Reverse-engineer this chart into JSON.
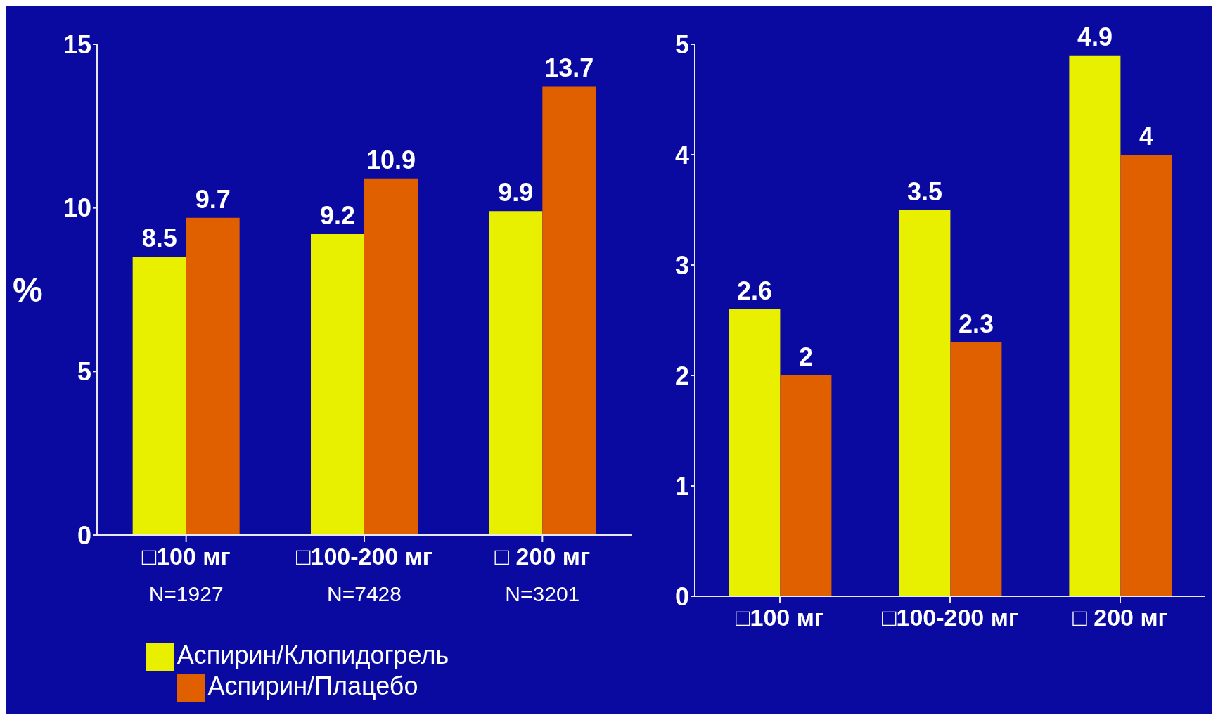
{
  "chart_data": [
    {
      "type": "bar",
      "ylabel": "%",
      "categories": [
        "□100 мг\nN=1927",
        "□100-200 мг\nN=7428",
        "□ 200 мг\nN=3201"
      ],
      "series": [
        {
          "name": "Аспирин/Клопидогрель",
          "color": "#e8f000",
          "values": [
            8.5,
            9.2,
            9.9
          ]
        },
        {
          "name": "Аспирин/Плацебо",
          "color": "#e06000",
          "values": [
            9.7,
            10.9,
            13.7
          ]
        }
      ],
      "ylim": [
        0,
        15
      ],
      "yticks": [
        0,
        5,
        10,
        15
      ],
      "data_labels": true,
      "grid": false,
      "legend": "bottom"
    },
    {
      "type": "bar",
      "categories": [
        "□100 мг",
        "□100-200 мг",
        "□ 200 мг"
      ],
      "series": [
        {
          "color": "#e8f000",
          "values": [
            2.6,
            3.5,
            4.9
          ]
        },
        {
          "color": "#e06000",
          "values": [
            2,
            2.3,
            4
          ]
        }
      ],
      "ylim": [
        0,
        5
      ],
      "yticks": [
        0,
        1,
        2,
        3,
        4,
        5
      ],
      "data_labels": true,
      "grid": false
    }
  ]
}
